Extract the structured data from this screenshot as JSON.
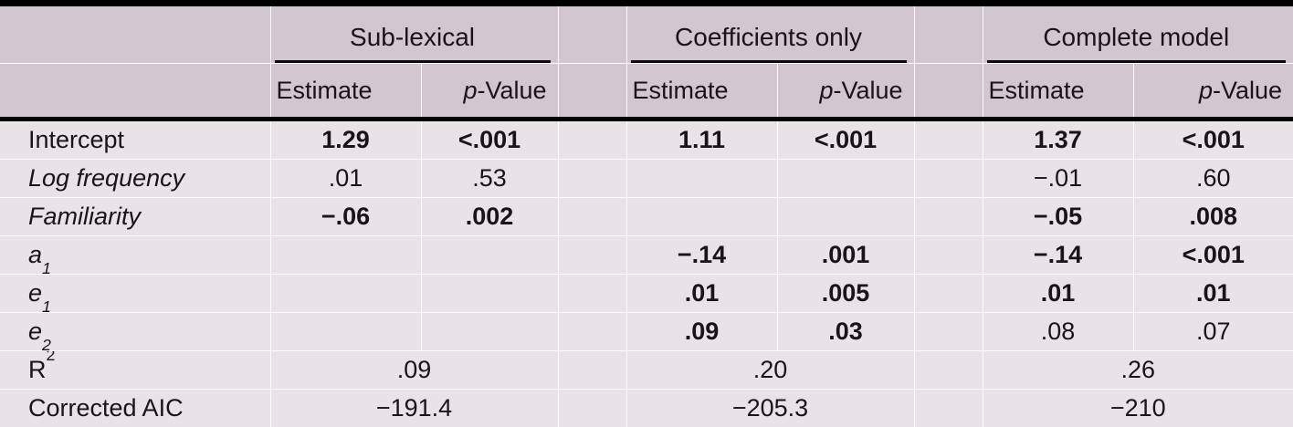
{
  "table": {
    "groups": [
      {
        "label": "Sub-lexical"
      },
      {
        "label": "Coefficients only"
      },
      {
        "label": "Complete model"
      }
    ],
    "subheader": {
      "estimate": "Estimate",
      "p_italic": "p",
      "p_rest": "-Value"
    },
    "rows": [
      {
        "label": "Intercept",
        "italic": false,
        "cells": [
          {
            "v": "1.29",
            "b": true
          },
          {
            "v": "<.001",
            "b": true
          },
          {
            "v": "1.11",
            "b": true
          },
          {
            "v": "<.001",
            "b": true
          },
          {
            "v": "1.37",
            "b": true
          },
          {
            "v": "<.001",
            "b": true
          }
        ]
      },
      {
        "label": "Log frequency",
        "italic": true,
        "cells": [
          {
            "v": ".01"
          },
          {
            "v": ".53"
          },
          {
            "v": ""
          },
          {
            "v": ""
          },
          {
            "v": "−.01"
          },
          {
            "v": ".60"
          }
        ]
      },
      {
        "label": "Familiarity",
        "italic": true,
        "cells": [
          {
            "v": "−.06",
            "b": true
          },
          {
            "v": ".002",
            "b": true
          },
          {
            "v": ""
          },
          {
            "v": ""
          },
          {
            "v": "−.05",
            "b": true
          },
          {
            "v": ".008",
            "b": true
          }
        ]
      },
      {
        "label": "a",
        "sub": "1",
        "italic": true,
        "cells": [
          {
            "v": ""
          },
          {
            "v": ""
          },
          {
            "v": "−.14",
            "b": true
          },
          {
            "v": ".001",
            "b": true
          },
          {
            "v": "−.14",
            "b": true
          },
          {
            "v": "<.001",
            "b": true
          }
        ]
      },
      {
        "label": "e",
        "sub": "1",
        "italic": true,
        "cells": [
          {
            "v": ""
          },
          {
            "v": ""
          },
          {
            "v": ".01",
            "b": true
          },
          {
            "v": ".005",
            "b": true
          },
          {
            "v": ".01",
            "b": true
          },
          {
            "v": ".01",
            "b": true
          }
        ]
      },
      {
        "label": "e",
        "sub": "2",
        "italic": true,
        "cells": [
          {
            "v": ""
          },
          {
            "v": ""
          },
          {
            "v": ".09",
            "b": true
          },
          {
            "v": ".03",
            "b": true
          },
          {
            "v": ".08"
          },
          {
            "v": ".07"
          }
        ]
      },
      {
        "label": "R",
        "sup": "2",
        "italic": false,
        "span_cells": [
          ".09",
          ".20",
          ".26"
        ]
      },
      {
        "label": "Corrected AIC",
        "italic": false,
        "span_cells": [
          "−191.4",
          "−205.3",
          "−210"
        ]
      }
    ]
  },
  "colors": {
    "header_bg": "#d2c7d1",
    "body_bg": "#e9e3e8",
    "text": "#1a141a",
    "rule": "#000000"
  }
}
